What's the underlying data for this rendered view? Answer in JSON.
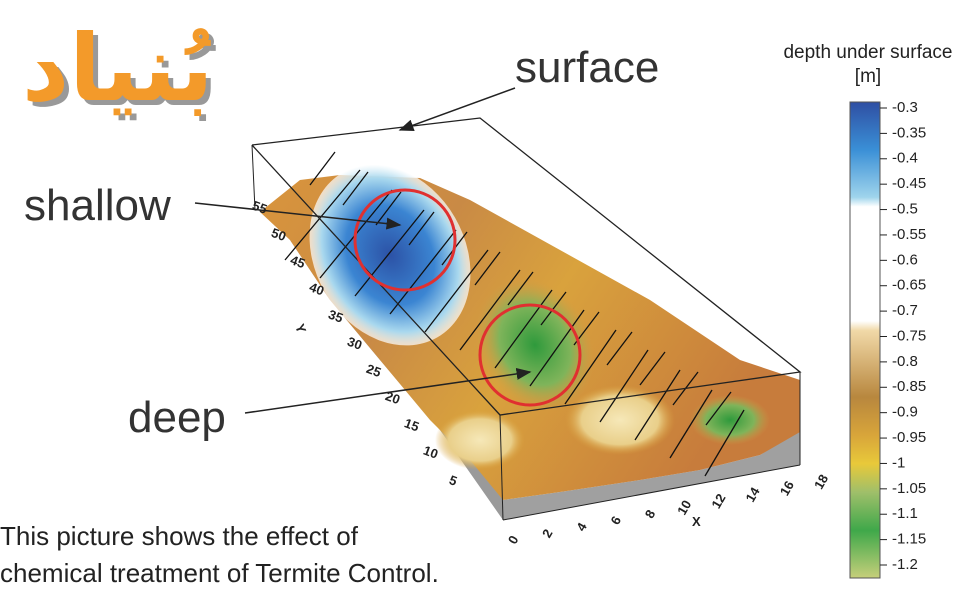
{
  "logo": "بُنياد",
  "labels": {
    "surface": "surface",
    "shallow": "shallow",
    "deep": "deep"
  },
  "caption": [
    "This picture shows the effect of",
    "chemical treatment of Termite Control."
  ],
  "colorbar": {
    "title": [
      "depth under surface",
      "[m]"
    ],
    "ticks": [
      -0.3,
      -0.35,
      -0.4,
      -0.45,
      -0.5,
      -0.55,
      -0.6,
      -0.65,
      -0.7,
      -0.75,
      -0.8,
      -0.85,
      -0.9,
      -0.95,
      -1,
      -1.05,
      -1.1,
      -1.15,
      -1.2
    ]
  },
  "axes": {
    "x_label": "X",
    "x_ticks": [
      0,
      2,
      4,
      6,
      8,
      10,
      12,
      14,
      16,
      18
    ],
    "y_label": "Y",
    "y_ticks": [
      5,
      10,
      15,
      20,
      25,
      30,
      35,
      40,
      45,
      50,
      55
    ]
  }
}
